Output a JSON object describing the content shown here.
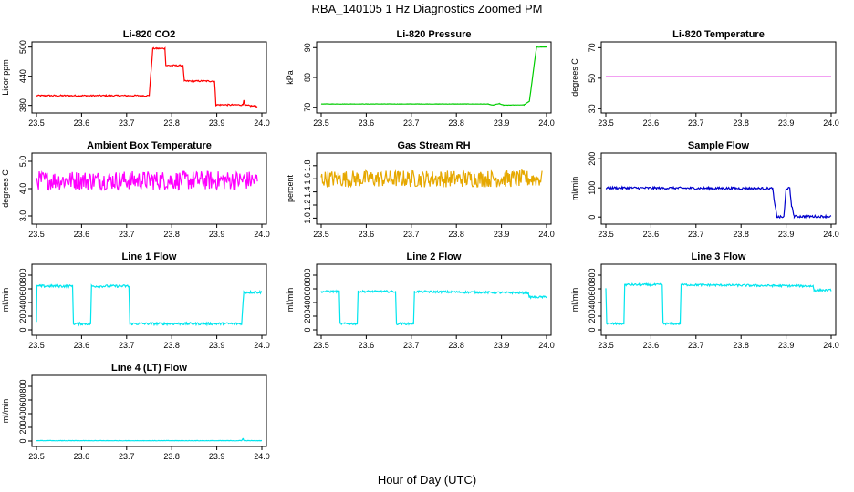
{
  "figure_title": "RBA_140105  1 Hz Diagnostics Zoomed PM",
  "x_axis_label": "Hour of Day (UTC)",
  "chart_data": [
    {
      "type": "line",
      "title": "Li-820 CO2",
      "ylabel": "Licor ppm",
      "xlim": [
        23.5,
        24.0
      ],
      "ylim": [
        370,
        505
      ],
      "yticks": [
        "380",
        "440",
        "500"
      ],
      "xticks": [
        "23.5",
        "23.6",
        "23.7",
        "23.8",
        "23.9",
        "24.0"
      ],
      "color": "#ff0000",
      "series": [
        {
          "name": "CO2",
          "noise": 1.5,
          "points": [
            [
              23.5,
              400
            ],
            [
              23.75,
              400
            ],
            [
              23.758,
              497
            ],
            [
              23.785,
              497
            ],
            [
              23.787,
              462
            ],
            [
              23.825,
              462
            ],
            [
              23.828,
              430
            ],
            [
              23.895,
              430
            ],
            [
              23.898,
              381
            ],
            [
              23.958,
              381
            ],
            [
              23.96,
              392
            ],
            [
              23.962,
              380
            ],
            [
              23.99,
              378
            ]
          ]
        }
      ]
    },
    {
      "type": "line",
      "title": "Li-820 Pressure",
      "ylabel": "kPa",
      "xlim": [
        23.5,
        24.0
      ],
      "ylim": [
        69,
        91
      ],
      "yticks": [
        "70",
        "80",
        "90"
      ],
      "xticks": [
        "23.5",
        "23.6",
        "23.7",
        "23.8",
        "23.9",
        "24.0"
      ],
      "color": "#00cc00",
      "series": [
        {
          "name": "Pressure",
          "noise": 0.05,
          "points": [
            [
              23.5,
              71.1
            ],
            [
              23.87,
              71.1
            ],
            [
              23.88,
              70.7
            ],
            [
              23.895,
              71.2
            ],
            [
              23.905,
              70.7
            ],
            [
              23.95,
              70.8
            ],
            [
              23.962,
              72
            ],
            [
              23.975,
              87
            ],
            [
              23.978,
              90.2
            ],
            [
              24.0,
              90.2
            ]
          ]
        }
      ]
    },
    {
      "type": "line",
      "title": "Li-820 Temperature",
      "ylabel": "degrees C",
      "xlim": [
        23.5,
        24.0
      ],
      "ylim": [
        29,
        72
      ],
      "yticks": [
        "30",
        "50",
        "70"
      ],
      "xticks": [
        "23.5",
        "23.6",
        "23.7",
        "23.8",
        "23.9",
        "24.0"
      ],
      "color": "#dd00dd",
      "series": [
        {
          "name": "Temperature",
          "noise": 0,
          "points": [
            [
              23.5,
              51
            ],
            [
              24.0,
              51
            ]
          ]
        }
      ]
    },
    {
      "type": "line",
      "title": "Ambient Box Temperature",
      "ylabel": "degrees C",
      "xlim": [
        23.5,
        24.0
      ],
      "ylim": [
        2.8,
        5.2
      ],
      "yticks": [
        "3.0",
        "4.0",
        "5.0"
      ],
      "xticks": [
        "23.5",
        "23.6",
        "23.7",
        "23.8",
        "23.9",
        "24.0"
      ],
      "color": "#ff00ff",
      "series": [
        {
          "name": "Box Temperature",
          "noise": 0.35,
          "points": [
            [
              23.5,
              4.3
            ],
            [
              23.99,
              4.3
            ]
          ]
        }
      ]
    },
    {
      "type": "line",
      "title": "Gas Stream RH",
      "ylabel": "percent",
      "xlim": [
        23.5,
        24.0
      ],
      "ylim": [
        0.95,
        1.95
      ],
      "yticks": [
        "1.0",
        "1.2",
        "1.4",
        "1.6",
        "1.8"
      ],
      "xticks": [
        "23.5",
        "23.6",
        "23.7",
        "23.8",
        "23.9",
        "24.0"
      ],
      "color": "#e6a800",
      "series": [
        {
          "name": "RH",
          "noise": 0.13,
          "points": [
            [
              23.5,
              1.6
            ],
            [
              23.99,
              1.6
            ]
          ]
        }
      ]
    },
    {
      "type": "line",
      "title": "Sample Flow",
      "ylabel": "ml/min",
      "xlim": [
        23.5,
        24.0
      ],
      "ylim": [
        -15,
        210
      ],
      "yticks": [
        "0",
        "100",
        "200"
      ],
      "xticks": [
        "23.5",
        "23.6",
        "23.7",
        "23.8",
        "23.9",
        "24.0"
      ],
      "color": "#0000cc",
      "series": [
        {
          "name": "Sample Flow",
          "noise": 4,
          "points": [
            [
              23.5,
              100
            ],
            [
              23.87,
              98
            ],
            [
              23.875,
              40
            ],
            [
              23.88,
              0
            ],
            [
              23.895,
              0
            ],
            [
              23.9,
              98
            ],
            [
              23.908,
              98
            ],
            [
              23.912,
              40
            ],
            [
              23.918,
              2
            ],
            [
              24.0,
              2
            ]
          ]
        }
      ]
    },
    {
      "type": "line",
      "title": "Line 1 Flow",
      "ylabel": "ml/min",
      "xlim": [
        23.5,
        24.0
      ],
      "ylim": [
        -40,
        920
      ],
      "yticks": [
        "0",
        "200",
        "400",
        "600",
        "800"
      ],
      "xticks": [
        "23.5",
        "23.6",
        "23.7",
        "23.8",
        "23.9",
        "24.0"
      ],
      "color": "#00e5ee",
      "series": [
        {
          "name": "Line 1",
          "noise": 18,
          "points": [
            [
              23.5,
              110
            ],
            [
              23.501,
              640
            ],
            [
              23.58,
              640
            ],
            [
              23.582,
              90
            ],
            [
              23.62,
              90
            ],
            [
              23.622,
              640
            ],
            [
              23.705,
              640
            ],
            [
              23.707,
              90
            ],
            [
              23.955,
              90
            ],
            [
              23.96,
              550
            ],
            [
              24.0,
              550
            ]
          ]
        }
      ]
    },
    {
      "type": "line",
      "title": "Line 2 Flow",
      "ylabel": "ml/min",
      "xlim": [
        23.5,
        24.0
      ],
      "ylim": [
        -40,
        920
      ],
      "yticks": [
        "0",
        "200",
        "400",
        "600",
        "800"
      ],
      "xticks": [
        "23.5",
        "23.6",
        "23.7",
        "23.8",
        "23.9",
        "24.0"
      ],
      "color": "#00e5ee",
      "series": [
        {
          "name": "Line 2",
          "noise": 15,
          "points": [
            [
              23.5,
              560
            ],
            [
              23.54,
              560
            ],
            [
              23.542,
              90
            ],
            [
              23.58,
              90
            ],
            [
              23.582,
              560
            ],
            [
              23.665,
              560
            ],
            [
              23.667,
              90
            ],
            [
              23.705,
              90
            ],
            [
              23.707,
              560
            ],
            [
              23.96,
              540
            ],
            [
              23.962,
              480
            ],
            [
              24.0,
              480
            ]
          ]
        }
      ]
    },
    {
      "type": "line",
      "title": "Line 3 Flow",
      "ylabel": "ml/min",
      "xlim": [
        23.5,
        24.0
      ],
      "ylim": [
        -40,
        920
      ],
      "yticks": [
        "0",
        "200",
        "400",
        "600",
        "800"
      ],
      "xticks": [
        "23.5",
        "23.6",
        "23.7",
        "23.8",
        "23.9",
        "24.0"
      ],
      "color": "#00e5ee",
      "series": [
        {
          "name": "Line 3",
          "noise": 15,
          "points": [
            [
              23.5,
              620
            ],
            [
              23.502,
              90
            ],
            [
              23.54,
              90
            ],
            [
              23.542,
              660
            ],
            [
              23.625,
              660
            ],
            [
              23.627,
              90
            ],
            [
              23.665,
              90
            ],
            [
              23.667,
              660
            ],
            [
              23.96,
              640
            ],
            [
              23.962,
              580
            ],
            [
              24.0,
              580
            ]
          ]
        }
      ]
    },
    {
      "type": "line",
      "title": "Line 4 (LT) Flow",
      "ylabel": "ml/min",
      "xlim": [
        23.5,
        24.0
      ],
      "ylim": [
        -40,
        920
      ],
      "yticks": [
        "0",
        "200",
        "400",
        "600",
        "800"
      ],
      "xticks": [
        "23.5",
        "23.6",
        "23.7",
        "23.8",
        "23.9",
        "24.0"
      ],
      "color": "#00e5ee",
      "series": [
        {
          "name": "Line 4",
          "noise": 3,
          "points": [
            [
              23.5,
              5
            ],
            [
              23.955,
              5
            ],
            [
              23.958,
              40
            ],
            [
              23.96,
              5
            ],
            [
              24.0,
              5
            ]
          ]
        }
      ]
    }
  ]
}
